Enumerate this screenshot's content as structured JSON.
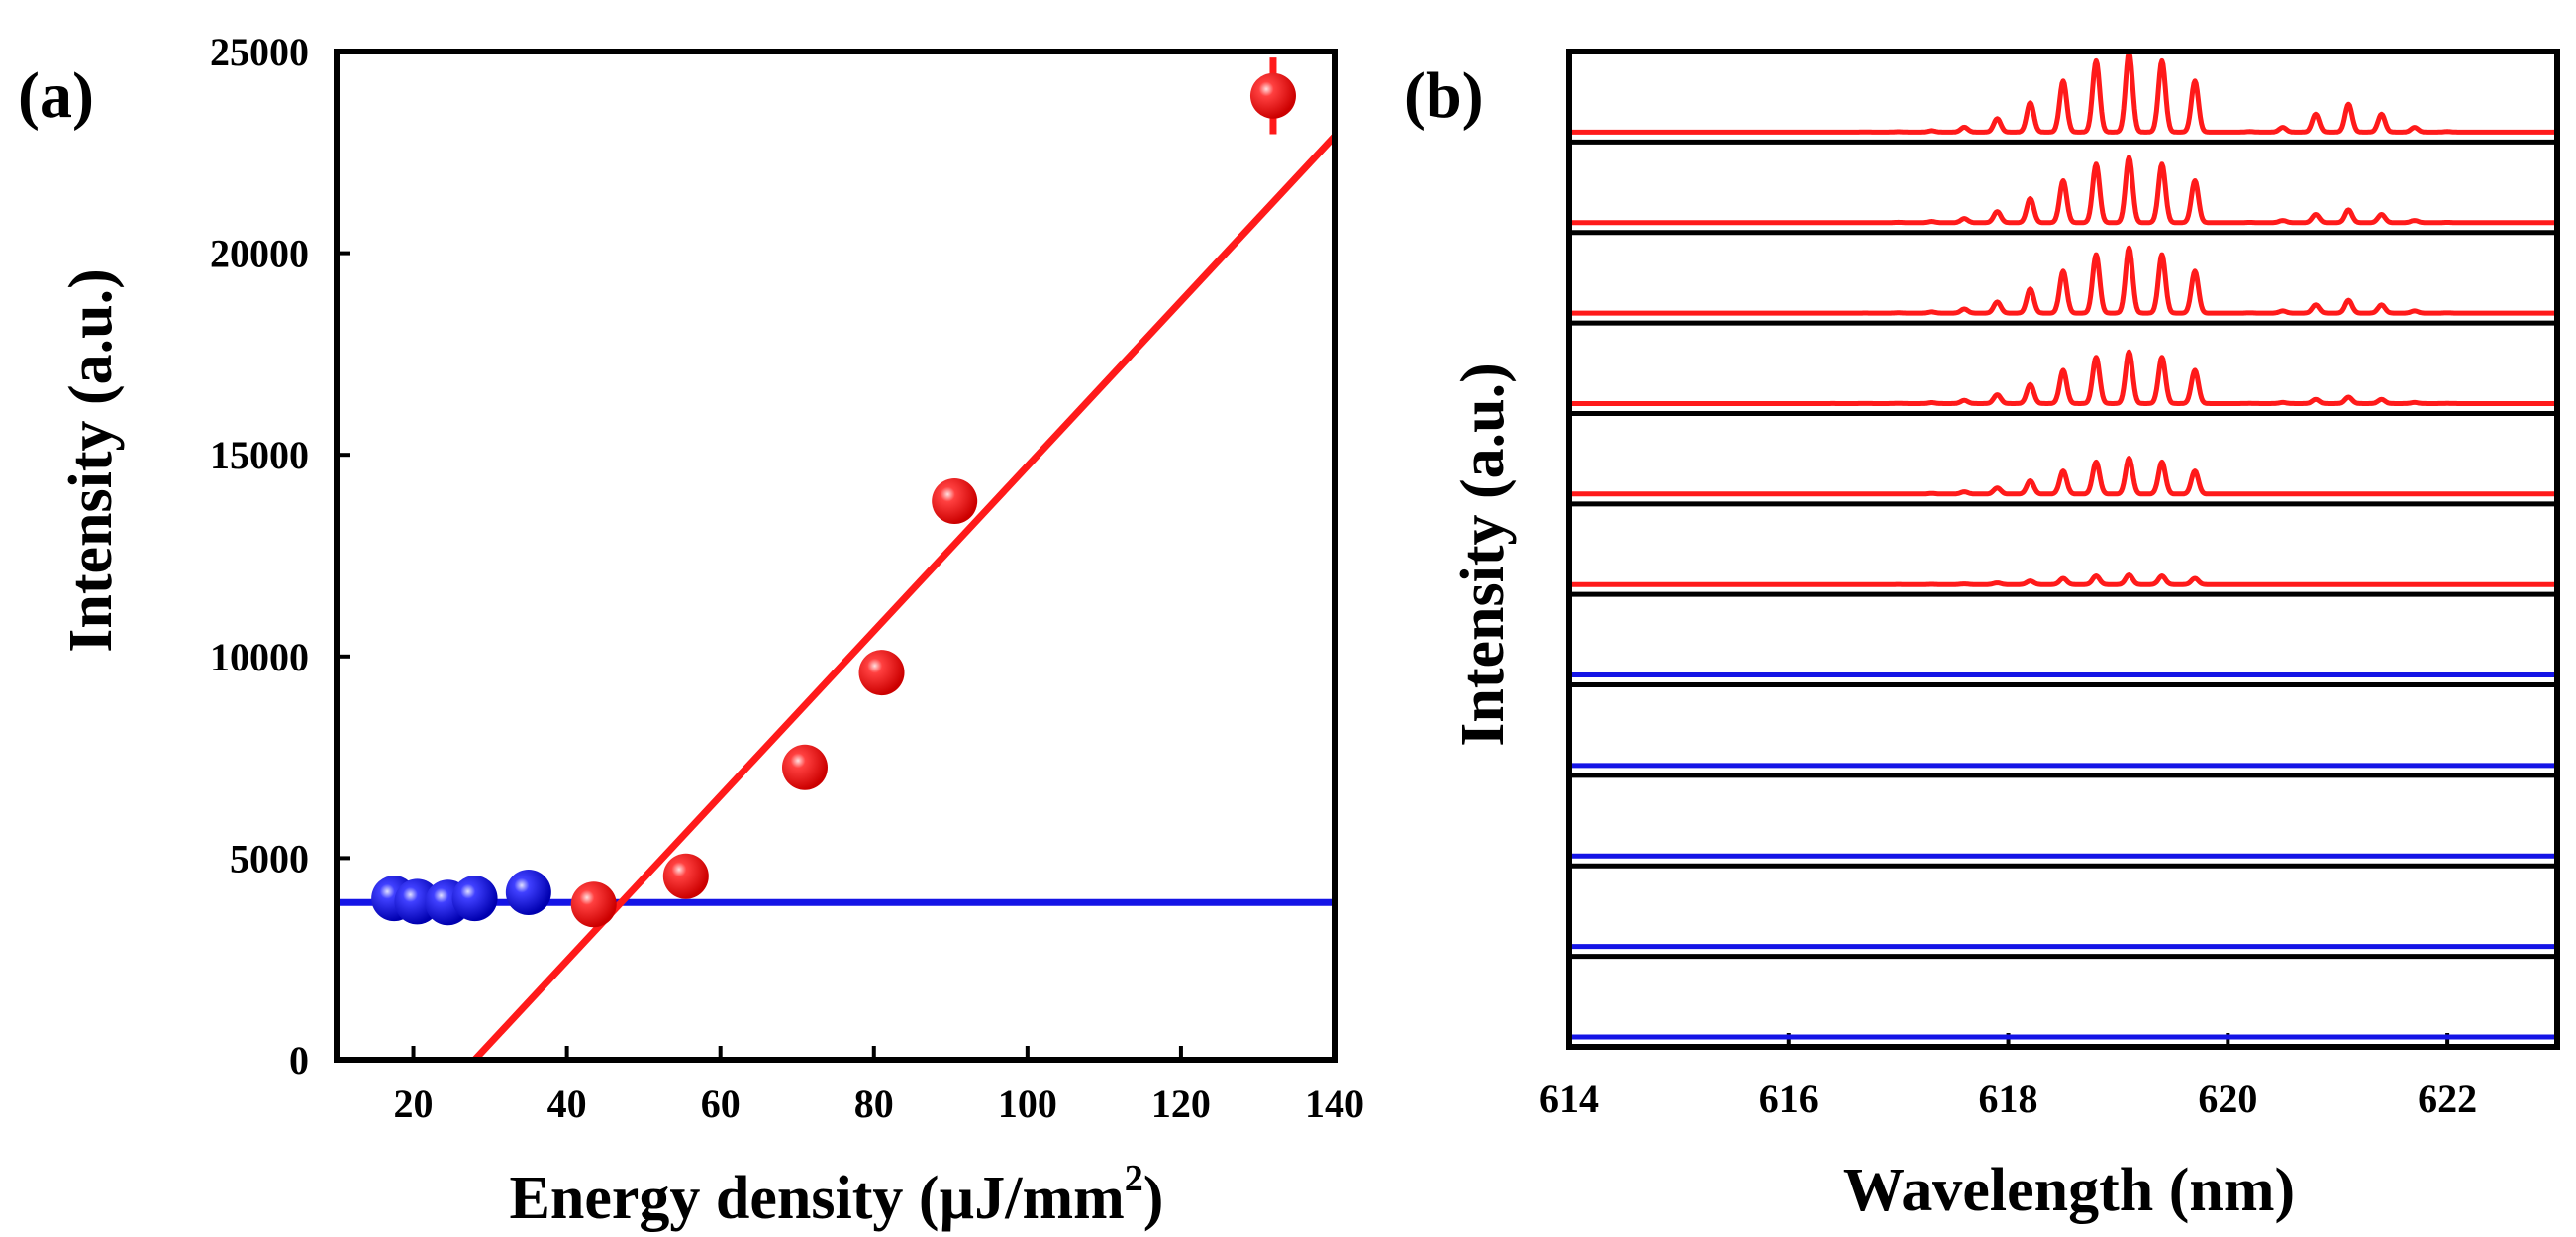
{
  "colors": {
    "red": "#ff1a1a",
    "blue": "#1414e6",
    "axis": "#000000"
  },
  "panel_a": {
    "label": "(a)",
    "xlabel_main": "Energy density (µJ/mm",
    "xlabel_sup": "2",
    "xlabel_end": ")",
    "ylabel": "Intensity (a.u.)"
  },
  "panel_b": {
    "label": "(b)",
    "xlabel": "Wavelength (nm)",
    "ylabel": "Intensity (a.u.)"
  },
  "chart_data": [
    {
      "type": "scatter",
      "panel": "a",
      "xlabel": "Energy density (µJ/mm2)",
      "ylabel": "Intensity (a.u.)",
      "xlim": [
        10,
        140
      ],
      "ylim": [
        0,
        25000
      ],
      "xticks": [
        20,
        40,
        60,
        80,
        100,
        120,
        140
      ],
      "yticks": [
        0,
        5000,
        10000,
        15000,
        20000,
        25000
      ],
      "grid": false,
      "series": [
        {
          "color": "blue",
          "points": [
            [
              17.5,
              4000
            ],
            [
              20.5,
              3920
            ],
            [
              24.5,
              3900
            ],
            [
              28,
              4000
            ],
            [
              35,
              4150
            ]
          ],
          "errors": [
            0,
            0,
            0,
            0,
            0
          ]
        },
        {
          "color": "red",
          "points": [
            [
              43.5,
              3850
            ],
            [
              55.5,
              4550
            ],
            [
              71,
              7250
            ],
            [
              81,
              9600
            ],
            [
              90.5,
              13850
            ],
            [
              132,
              23900
            ]
          ],
          "errors": [
            0,
            0,
            0,
            500,
            0,
            950
          ]
        }
      ],
      "fit_lines": [
        {
          "color": "blue",
          "x": [
            10,
            140
          ],
          "y": [
            3900,
            3900
          ]
        },
        {
          "color": "red",
          "x": [
            28,
            140
          ],
          "y": [
            0,
            22900
          ]
        }
      ]
    },
    {
      "type": "line",
      "panel": "b",
      "xlabel": "Wavelength (nm)",
      "ylabel": "Intensity (a.u.)",
      "xlim": [
        614,
        623
      ],
      "xticks": [
        614,
        616,
        618,
        620,
        622
      ],
      "grid": false,
      "mode_center": 619.1,
      "mode_spacing": 0.3,
      "secondary_center": 621.1,
      "stacked_spectra": [
        {
          "color": "red",
          "peak_amplitude": 1.0,
          "secondary_amplitude": 0.35
        },
        {
          "color": "red",
          "peak_amplitude": 0.82,
          "secondary_amplitude": 0.16
        },
        {
          "color": "red",
          "peak_amplitude": 0.82,
          "secondary_amplitude": 0.16
        },
        {
          "color": "red",
          "peak_amplitude": 0.65,
          "secondary_amplitude": 0.08
        },
        {
          "color": "red",
          "peak_amplitude": 0.45,
          "secondary_amplitude": 0.0
        },
        {
          "color": "red",
          "peak_amplitude": 0.12,
          "secondary_amplitude": 0.0
        },
        {
          "color": "blue",
          "peak_amplitude": 0,
          "secondary_amplitude": 0
        },
        {
          "color": "blue",
          "peak_amplitude": 0,
          "secondary_amplitude": 0
        },
        {
          "color": "blue",
          "peak_amplitude": 0,
          "secondary_amplitude": 0
        },
        {
          "color": "blue",
          "peak_amplitude": 0,
          "secondary_amplitude": 0
        },
        {
          "color": "blue",
          "peak_amplitude": 0,
          "secondary_amplitude": 0
        }
      ]
    }
  ]
}
